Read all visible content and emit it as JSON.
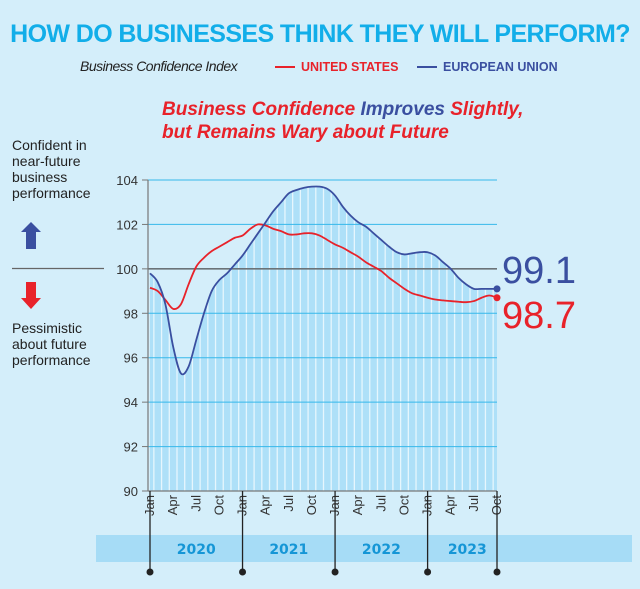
{
  "header": {
    "title": "HOW DO BUSINESSES THINK THEY WILL PERFORM?",
    "subtitle": "Business Confidence Index",
    "headline_part1": "Business Confidence ",
    "headline_part2": "Improves",
    "headline_part3": " Slightly,",
    "headline_line2": "but Remains Wary about Future"
  },
  "side": {
    "confident": [
      "Confident in",
      "near-future",
      "business",
      "performance"
    ],
    "pessimistic": [
      "Pessimistic",
      "about future",
      "performance"
    ]
  },
  "colors": {
    "us": "#e8222a",
    "eu": "#3a4fa0",
    "title": "#12aee9",
    "fill": "#aee0f8",
    "grid": "#36b8ea",
    "year_band": "#a6dcf6",
    "year_text": "#1596d6"
  },
  "chart_data": {
    "type": "line",
    "title": "Business Confidence Index",
    "xlabel": "",
    "ylabel": "",
    "ylim": [
      90,
      104
    ],
    "yticks": [
      90,
      92,
      94,
      96,
      98,
      100,
      102,
      104
    ],
    "baseline": 100,
    "x_start": "Jan 2020",
    "x_end": "Oct 2023",
    "month_ticks": [
      "Jan",
      "Apr",
      "Jul",
      "Oct",
      "Jan",
      "Apr",
      "Jul",
      "Oct",
      "Jan",
      "Apr",
      "Jul",
      "Oct",
      "Jan",
      "Apr",
      "Jul",
      "Oct"
    ],
    "years": [
      "2020",
      "2021",
      "2022",
      "2023"
    ],
    "series": [
      {
        "name": "UNITED STATES",
        "last_label": "98.7",
        "values": [
          99.15,
          99.0,
          98.6,
          98.2,
          98.4,
          99.3,
          100.1,
          100.5,
          100.8,
          101.0,
          101.2,
          101.4,
          101.5,
          101.8,
          102.0,
          101.95,
          101.8,
          101.7,
          101.55,
          101.55,
          101.6,
          101.6,
          101.5,
          101.3,
          101.1,
          100.95,
          100.75,
          100.55,
          100.3,
          100.1,
          99.9,
          99.6,
          99.35,
          99.1,
          98.9,
          98.8,
          98.7,
          98.62,
          98.58,
          98.55,
          98.52,
          98.5,
          98.55,
          98.7,
          98.8,
          98.7
        ]
      },
      {
        "name": "EUROPEAN UNION",
        "last_label": "99.1",
        "values": [
          99.8,
          99.4,
          98.4,
          96.5,
          95.3,
          95.6,
          96.8,
          98.0,
          99.0,
          99.5,
          99.8,
          100.2,
          100.6,
          101.1,
          101.6,
          102.1,
          102.6,
          103.0,
          103.4,
          103.55,
          103.65,
          103.7,
          103.7,
          103.6,
          103.3,
          102.8,
          102.4,
          102.1,
          101.9,
          101.6,
          101.3,
          101.0,
          100.75,
          100.65,
          100.7,
          100.75,
          100.75,
          100.6,
          100.3,
          100.0,
          99.6,
          99.3,
          99.1,
          99.1,
          99.1,
          99.1
        ]
      }
    ]
  }
}
